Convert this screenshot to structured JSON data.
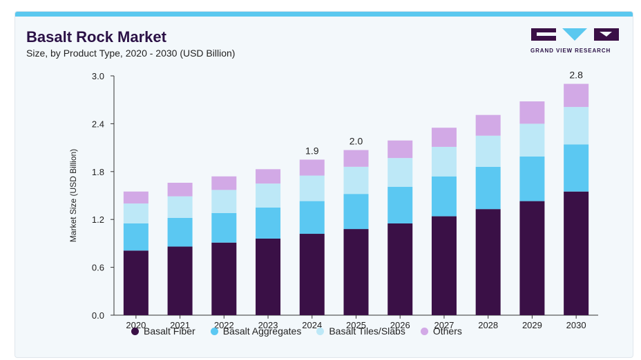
{
  "header": {
    "title": "Basalt Rock Market",
    "subtitle": "Size, by Product Type, 2020 - 2030 (USD Billion)"
  },
  "logo": {
    "text": "GRAND VIEW RESEARCH"
  },
  "colors": {
    "accent_bar": "#5bc8ef",
    "title": "#2b1146",
    "Basalt Fiber": "#3a1046",
    "Basalt Aggregates": "#5bc8f2",
    "Basalt Tiles/Slabs": "#bde8f7",
    "Others": "#d2a9e6"
  },
  "chart_data": {
    "type": "bar",
    "stacked": true,
    "title": "Basalt Rock Market",
    "subtitle": "Size, by Product Type, 2020 - 2030 (USD Billion)",
    "xlabel": "",
    "ylabel": "Market Size (USD Billion)",
    "ylim": [
      0,
      3.0
    ],
    "yticks": [
      "0.0",
      "0.6",
      "1.2",
      "1.8",
      "2.4",
      "3.0"
    ],
    "grid": false,
    "legend_position": "bottom",
    "categories": [
      "2020",
      "2021",
      "2022",
      "2023",
      "2024",
      "2025",
      "2026",
      "2027",
      "2028",
      "2029",
      "2030"
    ],
    "series": [
      {
        "name": "Basalt Fiber",
        "values": [
          0.81,
          0.86,
          0.91,
          0.96,
          1.02,
          1.08,
          1.15,
          1.24,
          1.33,
          1.43,
          1.55
        ]
      },
      {
        "name": "Basalt Aggregates",
        "values": [
          0.34,
          0.36,
          0.37,
          0.39,
          0.41,
          0.44,
          0.46,
          0.5,
          0.53,
          0.56,
          0.59
        ]
      },
      {
        "name": "Basalt Tiles/Slabs",
        "values": [
          0.25,
          0.27,
          0.29,
          0.3,
          0.32,
          0.34,
          0.36,
          0.37,
          0.39,
          0.41,
          0.47
        ]
      },
      {
        "name": "Others",
        "values": [
          0.15,
          0.17,
          0.17,
          0.18,
          0.2,
          0.21,
          0.22,
          0.24,
          0.26,
          0.28,
          0.29
        ]
      }
    ],
    "annotations": [
      {
        "category": "2024",
        "label": "1.9"
      },
      {
        "category": "2025",
        "label": "2.0"
      },
      {
        "category": "2030",
        "label": "2.8"
      }
    ]
  }
}
